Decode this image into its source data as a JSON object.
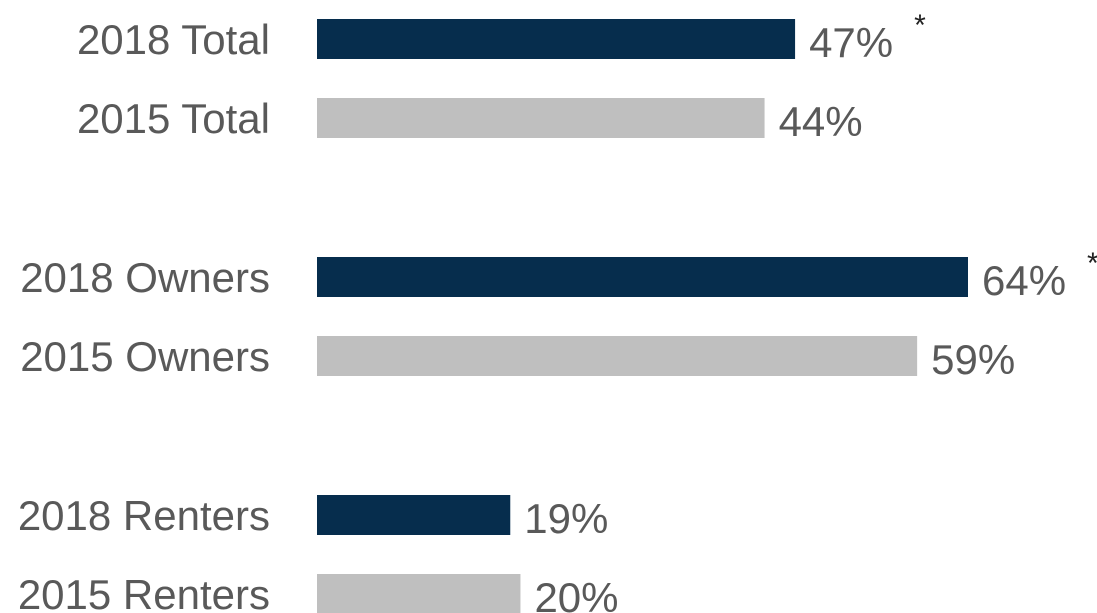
{
  "chart_data": {
    "type": "bar",
    "orientation": "horizontal",
    "categories": [
      "2018 Total",
      "2015 Total",
      "2018 Owners",
      "2015 Owners",
      "2018 Renters",
      "2015 Renters"
    ],
    "values": [
      47,
      44,
      64,
      59,
      19,
      20
    ],
    "value_labels": [
      "47%",
      "44%",
      "64%",
      "59%",
      "19%",
      "20%"
    ],
    "significance_markers": [
      "*",
      "",
      "*",
      "",
      "",
      ""
    ],
    "bar_colors": [
      "#062d4d",
      "#bfbfbf",
      "#062d4d",
      "#bfbfbf",
      "#062d4d",
      "#bfbfbf"
    ],
    "xlim": [
      0,
      64
    ],
    "grid": false,
    "legend": "none"
  },
  "colors": {
    "year_2018": "#062d4d",
    "year_2015": "#bfbfbf",
    "label_text": "#595959"
  }
}
